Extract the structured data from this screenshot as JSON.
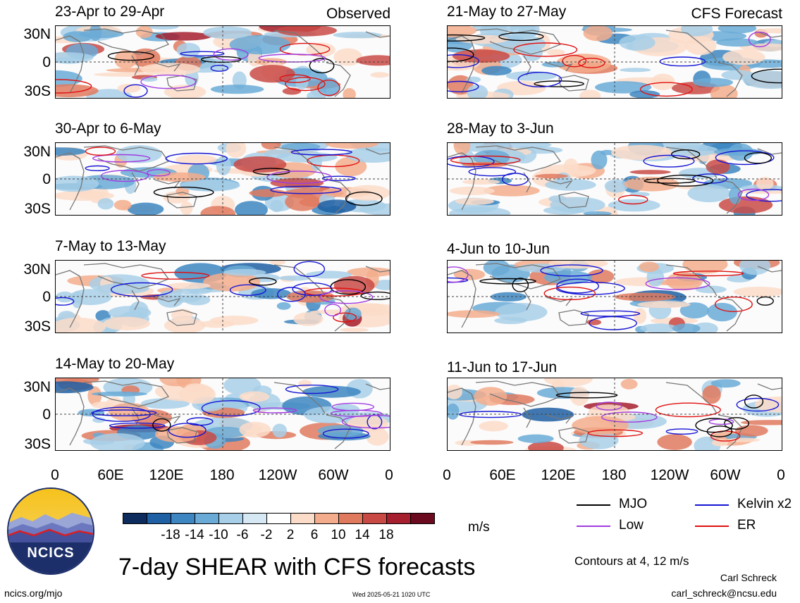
{
  "panels": [
    {
      "title": "23-Apr to 29-Apr",
      "tag": "Observed"
    },
    {
      "title": "30-Apr to 6-May",
      "tag": ""
    },
    {
      "title": "7-May to 13-May",
      "tag": ""
    },
    {
      "title": "14-May to 20-May",
      "tag": ""
    },
    {
      "title": "21-May to 27-May",
      "tag": "CFS Forecast"
    },
    {
      "title": "28-May to 3-Jun",
      "tag": ""
    },
    {
      "title": "4-Jun to 10-Jun",
      "tag": ""
    },
    {
      "title": "11-Jun to 17-Jun",
      "tag": ""
    }
  ],
  "lat_labels": [
    "30N",
    "0",
    "30S"
  ],
  "lon_labels": [
    "0",
    "60E",
    "120E",
    "180",
    "120W",
    "60W",
    "0"
  ],
  "colorbar": {
    "colors": [
      "#0d2b5c",
      "#1f5fa3",
      "#3d86c1",
      "#6aaad6",
      "#a8cfe8",
      "#d6e8f4",
      "#ffffff",
      "#fbdcc9",
      "#f3ad8c",
      "#e07a5f",
      "#c94a45",
      "#a51f2e",
      "#6b0a1e"
    ],
    "labels": [
      "-18",
      "-14",
      "-10",
      "-6",
      "-2",
      "2",
      "6",
      "10",
      "14",
      "18"
    ],
    "unit": "m/s"
  },
  "legend": {
    "items": [
      {
        "label": "MJO",
        "color": "#000000"
      },
      {
        "label": "Kelvin x2",
        "color": "#1515d4"
      },
      {
        "label": "Low",
        "color": "#a23ce0"
      },
      {
        "label": "ER",
        "color": "#e01010"
      }
    ],
    "contours_note": "Contours at 4, 12 m/s"
  },
  "main_title": "7-day SHEAR with CFS forecasts",
  "logo_text": "NCICS",
  "footer": {
    "url": "ncics.org/mjo",
    "timestamp": "Wed 2025-05-21 1020 UTC",
    "author": "Carl Schreck",
    "email": "carl_schreck@ncsu.edu"
  }
}
